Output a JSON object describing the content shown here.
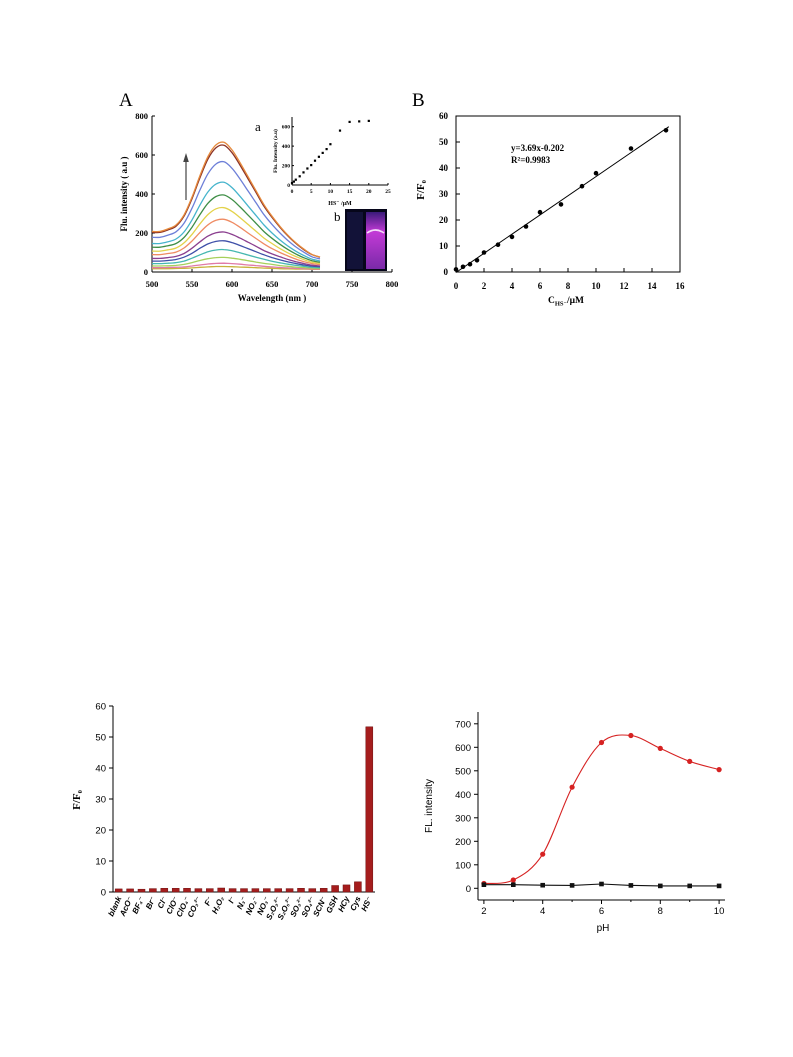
{
  "figure_a": {
    "photo_label": "b"
  },
  "chart_data": [
    {
      "panel": "A",
      "type": "line",
      "xlabel": "Wavelength (nm )",
      "ylabel": "Flu. intensity ( a.u )",
      "xlim": [
        500,
        800
      ],
      "ylim": [
        0,
        800
      ],
      "x_ticks": [
        500,
        550,
        600,
        650,
        700,
        750,
        800
      ],
      "y_ticks": [
        0,
        200,
        400,
        600,
        800
      ],
      "x": [
        500,
        510,
        520,
        530,
        540,
        550,
        560,
        570,
        580,
        590,
        600,
        610,
        620,
        630,
        640,
        650,
        660,
        670,
        680,
        690,
        700,
        710
      ],
      "series": [
        {
          "color": "#e68a3c",
          "values": [
            208,
            208,
            221,
            241,
            293,
            384,
            495,
            593,
            652,
            665,
            626,
            561,
            489,
            417,
            345,
            286,
            234,
            188,
            149,
            117,
            90,
            77
          ]
        },
        {
          "color": "#8b3226",
          "values": [
            203,
            203,
            216,
            235,
            286,
            376,
            484,
            580,
            637,
            650,
            612,
            548,
            478,
            408,
            337,
            280,
            229,
            184,
            146,
            114,
            89,
            76
          ]
        },
        {
          "color": "#6d7fd8",
          "values": [
            178,
            178,
            189,
            206,
            250,
            327,
            421,
            504,
            554,
            565,
            532,
            477,
            416,
            355,
            294,
            244,
            200,
            161,
            128,
            101,
            78,
            67
          ]
        },
        {
          "color": "#46b4cc",
          "values": [
            146,
            146,
            155,
            169,
            205,
            267,
            344,
            411,
            451,
            460,
            433,
            388,
            339,
            290,
            241,
            200,
            164,
            133,
            106,
            84,
            66,
            57
          ]
        },
        {
          "color": "#3e8e46",
          "values": [
            127,
            127,
            135,
            146,
            177,
            230,
            295,
            353,
            387,
            395,
            372,
            334,
            292,
            250,
            207,
            173,
            142,
            115,
            92,
            73,
            58,
            50
          ]
        },
        {
          "color": "#e3d24a",
          "values": [
            107,
            107,
            114,
            123,
            149,
            193,
            247,
            295,
            324,
            330,
            311,
            279,
            244,
            209,
            174,
            146,
            120,
            98,
            79,
            63,
            50,
            44
          ]
        },
        {
          "color": "#ef8b63",
          "values": [
            89,
            89,
            95,
            102,
            123,
            159,
            203,
            242,
            265,
            270,
            255,
            229,
            200,
            172,
            144,
            120,
            100,
            82,
            66,
            53,
            43,
            38
          ]
        },
        {
          "color": "#8b3f8f",
          "values": [
            70,
            70,
            74,
            80,
            95,
            122,
            155,
            184,
            201,
            205,
            193,
            174,
            153,
            132,
            110,
            93,
            78,
            64,
            53,
            43,
            35,
            31
          ]
        },
        {
          "color": "#3e4fa8",
          "values": [
            56,
            56,
            59,
            64,
            76,
            96,
            122,
            144,
            157,
            160,
            151,
            136,
            120,
            104,
            88,
            74,
            62,
            52,
            43,
            36,
            30,
            27
          ]
        },
        {
          "color": "#46b8b0",
          "values": [
            43,
            43,
            45,
            48,
            56,
            71,
            88,
            104,
            113,
            115,
            109,
            99,
            87,
            76,
            65,
            55,
            47,
            40,
            34,
            29,
            24,
            22
          ]
        },
        {
          "color": "#a6d05a",
          "values": [
            31,
            31,
            32,
            34,
            39,
            48,
            59,
            68,
            74,
            75,
            71,
            65,
            58,
            51,
            44,
            39,
            33,
            29,
            25,
            22,
            20,
            18
          ]
        },
        {
          "color": "#e07aa8",
          "values": [
            22,
            22,
            23,
            24,
            26,
            31,
            36,
            41,
            44,
            45,
            43,
            40,
            36,
            33,
            29,
            26,
            23,
            21,
            19,
            17,
            16,
            15
          ]
        },
        {
          "color": "#c8b23c",
          "values": [
            17,
            17,
            17,
            18,
            19,
            21,
            24,
            26,
            28,
            28,
            27,
            25,
            24,
            22,
            20,
            19,
            17,
            16,
            15,
            15,
            14,
            14
          ]
        }
      ]
    },
    {
      "panel": "a",
      "type": "scatter",
      "xlabel": "HS⁻ /μM",
      "ylabel": "Flu. Intensity (a.u)",
      "xlim": [
        0,
        25
      ],
      "ylim": [
        0,
        700
      ],
      "x_ticks": [
        0,
        5,
        10,
        15,
        20,
        25
      ],
      "y_ticks": [
        0,
        200,
        400,
        600
      ],
      "points": [
        [
          0,
          20
        ],
        [
          0.5,
          35
        ],
        [
          1,
          55
        ],
        [
          2,
          90
        ],
        [
          3,
          130
        ],
        [
          4,
          170
        ],
        [
          5,
          205
        ],
        [
          6,
          250
        ],
        [
          7,
          290
        ],
        [
          8,
          330
        ],
        [
          9,
          370
        ],
        [
          10,
          420
        ],
        [
          12.5,
          560
        ],
        [
          15,
          650
        ],
        [
          17.5,
          655
        ],
        [
          20,
          660
        ]
      ]
    },
    {
      "panel": "B",
      "type": "scatter",
      "xlabel_main": "C",
      "xlabel_sub": "HS⁻",
      "xlabel_unit": "/μM",
      "ylabel": "F/F₀",
      "xlim": [
        0,
        16
      ],
      "ylim": [
        0,
        60
      ],
      "x_ticks": [
        0,
        2,
        4,
        6,
        8,
        10,
        12,
        14,
        16
      ],
      "y_ticks": [
        0,
        10,
        20,
        30,
        40,
        50,
        60
      ],
      "points": [
        [
          0,
          1
        ],
        [
          0.5,
          2
        ],
        [
          1,
          3
        ],
        [
          1.5,
          4.5
        ],
        [
          2,
          7.5
        ],
        [
          3,
          10.5
        ],
        [
          4,
          13.5
        ],
        [
          5,
          17.5
        ],
        [
          6,
          23
        ],
        [
          7.5,
          26
        ],
        [
          9,
          33
        ],
        [
          10,
          38
        ],
        [
          12.5,
          47.5
        ],
        [
          15,
          54.5
        ]
      ],
      "fit": {
        "slope": 3.69,
        "intercept": -0.202,
        "x_range": [
          0,
          15.2
        ],
        "equation": "y=3.69x-0.202",
        "r2": "R²=0.9983"
      }
    },
    {
      "type": "bar",
      "ylabel": "F/F₀",
      "ylim": [
        0,
        60
      ],
      "y_ticks": [
        0,
        10,
        20,
        30,
        40,
        50,
        60
      ],
      "color": "#a51d1d",
      "categories": [
        "blank",
        "AcO⁻",
        "BF₄⁻",
        "Br⁻",
        "Cl⁻",
        "ClO⁻",
        "ClO₄⁻",
        "CO₃²⁻",
        "F⁻",
        "H₂O₂",
        "I⁻",
        "N₃⁻",
        "NO₂⁻",
        "NO₃⁻",
        "S₂O₃²⁻",
        "S₂O₅²⁻",
        "SO₃²⁻",
        "SO₄²⁻",
        "SCN⁻",
        "GSH",
        "HCy",
        "Cys",
        "HS⁻"
      ],
      "values": [
        1.0,
        1.0,
        0.9,
        1.1,
        1.2,
        1.2,
        1.2,
        1.1,
        1.1,
        1.3,
        1.1,
        1.1,
        1.1,
        1.1,
        1.1,
        1.1,
        1.2,
        1.1,
        1.2,
        2.1,
        2.3,
        3.3,
        53.3
      ]
    },
    {
      "type": "line",
      "xlabel": "pH",
      "ylabel": "FL. intensity",
      "xlim": [
        1.8,
        10.2
      ],
      "ylim": [
        -50,
        750
      ],
      "x_ticks": [
        2,
        4,
        6,
        8,
        10
      ],
      "y_ticks": [
        0,
        100,
        200,
        300,
        400,
        500,
        600,
        700
      ],
      "x": [
        2,
        3,
        4,
        5,
        6,
        7,
        8,
        9,
        10
      ],
      "series": [
        {
          "color": "#d62222",
          "marker": "circle",
          "values": [
            20,
            35,
            145,
            430,
            620,
            650,
            595,
            540,
            505
          ]
        },
        {
          "color": "#111111",
          "marker": "square",
          "values": [
            15,
            15,
            13,
            12,
            18,
            12,
            10,
            10,
            10
          ]
        }
      ]
    }
  ]
}
